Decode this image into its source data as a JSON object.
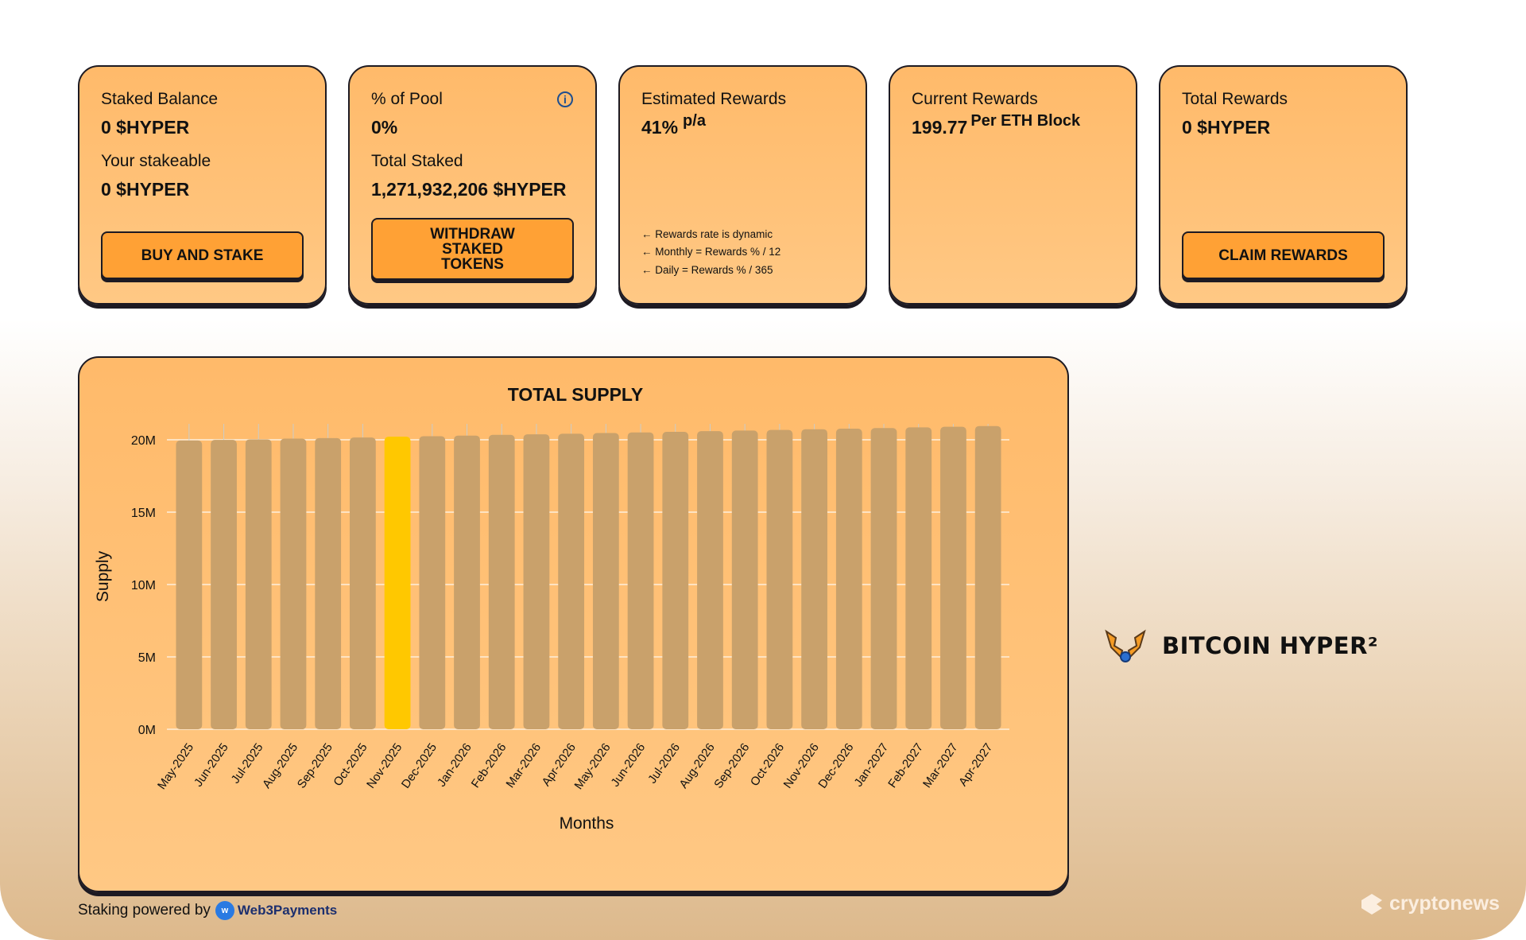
{
  "cards": [
    {
      "label1": "Staked Balance",
      "value1": "0 $HYPER",
      "label2": "Your stakeable",
      "value2": "0 $HYPER",
      "button": "BUY AND STAKE"
    },
    {
      "label1": "% of Pool",
      "value1": "0%",
      "label2": "Total Staked",
      "value2": "1,271,932,206 $HYPER",
      "button": "WITHDRAW STAKED TOKENS",
      "icon": "info-icon"
    },
    {
      "label1": "Estimated Rewards",
      "value1": "41%",
      "value1_suffix": "p/a",
      "notes": [
        "Rewards rate is dynamic",
        "Monthly = Rewards % / 12",
        "Daily = Rewards % / 365"
      ]
    },
    {
      "label1": "Current Rewards",
      "value1": "199.77",
      "value1_suffix": "Per ETH Block"
    },
    {
      "label1": "Total Rewards",
      "value1": "0 $HYPER",
      "button": "CLAIM REWARDS"
    }
  ],
  "chart_data": {
    "type": "bar",
    "title": "TOTAL SUPPLY",
    "xlabel": "Months",
    "ylabel": "Supply",
    "ylim": [
      0,
      20000000
    ],
    "yticks": [
      "0M",
      "5M",
      "10M",
      "15M",
      "20M"
    ],
    "grid": true,
    "categories": [
      "May-2025",
      "Jun-2025",
      "Jul-2025",
      "Aug-2025",
      "Sep-2025",
      "Oct-2025",
      "Nov-2025",
      "Dec-2025",
      "Jan-2026",
      "Feb-2026",
      "Mar-2026",
      "Apr-2026",
      "May-2026",
      "Jun-2026",
      "Jul-2026",
      "Aug-2026",
      "Sep-2026",
      "Oct-2026",
      "Nov-2026",
      "Dec-2026",
      "Jan-2027",
      "Feb-2027",
      "Mar-2027",
      "Apr-2027"
    ],
    "values": [
      19950000,
      19990000,
      20030000,
      20080000,
      20120000,
      20160000,
      20210000,
      20250000,
      20290000,
      20340000,
      20380000,
      20420000,
      20470000,
      20510000,
      20550000,
      20600000,
      20640000,
      20680000,
      20730000,
      20770000,
      20810000,
      20860000,
      20900000,
      20950000
    ],
    "highlight": "Nov-2025",
    "colors": {
      "bar": "#c9a16b",
      "highlight": "#ffc800"
    }
  },
  "footer": {
    "text": "Staking powered by",
    "brand": "Web3Payments"
  },
  "logo": {
    "text": "BITCOIN HYPER²"
  },
  "watermark": "cryptonews"
}
